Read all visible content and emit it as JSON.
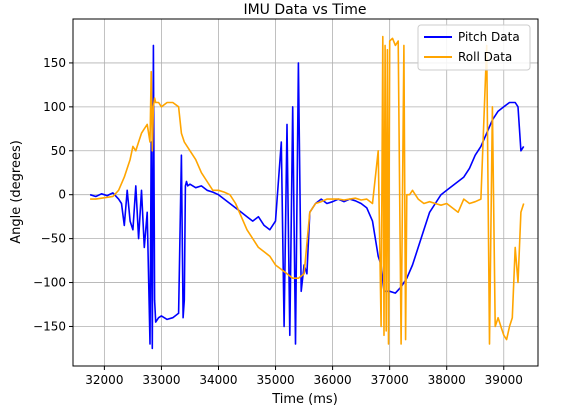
{
  "chart_data": {
    "type": "line",
    "title": "IMU Data vs Time",
    "xlabel": "Time (ms)",
    "ylabel": "Angle (degrees)",
    "xlim": [
      31450,
      39600
    ],
    "ylim": [
      -195,
      200
    ],
    "xticks": [
      32000,
      33000,
      34000,
      35000,
      36000,
      37000,
      38000,
      39000
    ],
    "yticks": [
      -150,
      -100,
      -50,
      0,
      50,
      100,
      150
    ],
    "xtick_labels": [
      "32000",
      "33000",
      "34000",
      "35000",
      "36000",
      "37000",
      "38000",
      "39000"
    ],
    "ytick_labels": [
      "−150",
      "−100",
      "−50",
      "0",
      "50",
      "100",
      "150"
    ],
    "grid": true,
    "legend_position": "top-right",
    "series": [
      {
        "name": "Pitch Data",
        "color": "#0000ff",
        "x": [
          31750,
          31850,
          31950,
          32050,
          32150,
          32250,
          32300,
          32350,
          32400,
          32450,
          32500,
          32550,
          32600,
          32650,
          32700,
          32750,
          32800,
          32820,
          32840,
          32860,
          32880,
          32900,
          32950,
          33000,
          33100,
          33200,
          33300,
          33350,
          33380,
          33400,
          33420,
          33440,
          33460,
          33500,
          33600,
          33700,
          33800,
          33900,
          34000,
          34100,
          34200,
          34300,
          34400,
          34500,
          34600,
          34700,
          34800,
          34900,
          35000,
          35100,
          35150,
          35200,
          35250,
          35300,
          35350,
          35400,
          35450,
          35500,
          35550,
          35600,
          35700,
          35800,
          35900,
          36000,
          36100,
          36200,
          36300,
          36400,
          36500,
          36600,
          36700,
          36800,
          36850,
          36900,
          37000,
          37100,
          37200,
          37300,
          37400,
          37500,
          37600,
          37700,
          37800,
          37900,
          38000,
          38100,
          38200,
          38300,
          38400,
          38500,
          38600,
          38700,
          38800,
          38900,
          39000,
          39100,
          39200,
          39250,
          39300,
          39350
        ],
        "y": [
          0,
          -2,
          1,
          -1,
          2,
          -5,
          -10,
          -35,
          5,
          -30,
          -40,
          10,
          -50,
          5,
          -60,
          -20,
          -170,
          60,
          -175,
          170,
          -120,
          -145,
          -140,
          -138,
          -142,
          -140,
          -135,
          45,
          -140,
          -120,
          10,
          15,
          10,
          12,
          8,
          10,
          5,
          3,
          0,
          -5,
          -10,
          -15,
          -20,
          -25,
          -30,
          -25,
          -35,
          -40,
          -30,
          60,
          -150,
          80,
          -160,
          100,
          -170,
          150,
          -110,
          -80,
          -90,
          -20,
          -10,
          -5,
          -10,
          -8,
          -5,
          -8,
          -5,
          -7,
          -10,
          -15,
          -30,
          -70,
          -80,
          -110,
          -110,
          -112,
          -105,
          -95,
          -80,
          -60,
          -40,
          -20,
          -10,
          0,
          5,
          10,
          15,
          20,
          30,
          45,
          55,
          70,
          85,
          95,
          100,
          105,
          105,
          100,
          50,
          55
        ]
      },
      {
        "name": "Roll Data",
        "color": "#ffa500",
        "x": [
          31750,
          31850,
          31950,
          32050,
          32150,
          32250,
          32350,
          32450,
          32500,
          32550,
          32600,
          32650,
          32700,
          32750,
          32800,
          32820,
          32840,
          32860,
          32880,
          32900,
          32950,
          33000,
          33100,
          33200,
          33300,
          33350,
          33400,
          33500,
          33600,
          33700,
          33800,
          33900,
          34000,
          34100,
          34200,
          34300,
          34400,
          34500,
          34600,
          34700,
          34800,
          34900,
          35000,
          35100,
          35200,
          35300,
          35400,
          35500,
          35600,
          35700,
          35800,
          35900,
          36000,
          36100,
          36200,
          36300,
          36400,
          36500,
          36600,
          36700,
          36800,
          36850,
          36880,
          36900,
          36920,
          36940,
          36960,
          36980,
          37000,
          37050,
          37100,
          37150,
          37200,
          37250,
          37280,
          37300,
          37350,
          37400,
          37450,
          37500,
          37600,
          37700,
          37800,
          37900,
          38000,
          38100,
          38200,
          38300,
          38400,
          38500,
          38600,
          38700,
          38750,
          38800,
          38850,
          38900,
          38950,
          39000,
          39050,
          39100,
          39150,
          39200,
          39250,
          39300,
          39350
        ],
        "y": [
          -5,
          -5,
          -4,
          -3,
          -2,
          5,
          20,
          40,
          55,
          50,
          60,
          70,
          75,
          80,
          60,
          140,
          50,
          100,
          110,
          105,
          105,
          100,
          105,
          105,
          100,
          70,
          60,
          50,
          40,
          25,
          15,
          5,
          5,
          3,
          0,
          -10,
          -25,
          -40,
          -50,
          -60,
          -65,
          -70,
          -80,
          -85,
          -90,
          -95,
          -95,
          -90,
          -20,
          -10,
          -8,
          -5,
          -5,
          -5,
          -6,
          -5,
          -4,
          -6,
          -5,
          -10,
          50,
          -150,
          180,
          -160,
          170,
          -155,
          165,
          -170,
          175,
          178,
          170,
          175,
          -170,
          170,
          -165,
          0,
          0,
          5,
          0,
          -5,
          -10,
          -8,
          -10,
          -12,
          -10,
          -15,
          -20,
          -5,
          -10,
          -8,
          -5,
          170,
          -170,
          100,
          -150,
          -140,
          -150,
          -160,
          -165,
          -150,
          -140,
          -60,
          -100,
          -20,
          -10
        ]
      }
    ]
  }
}
